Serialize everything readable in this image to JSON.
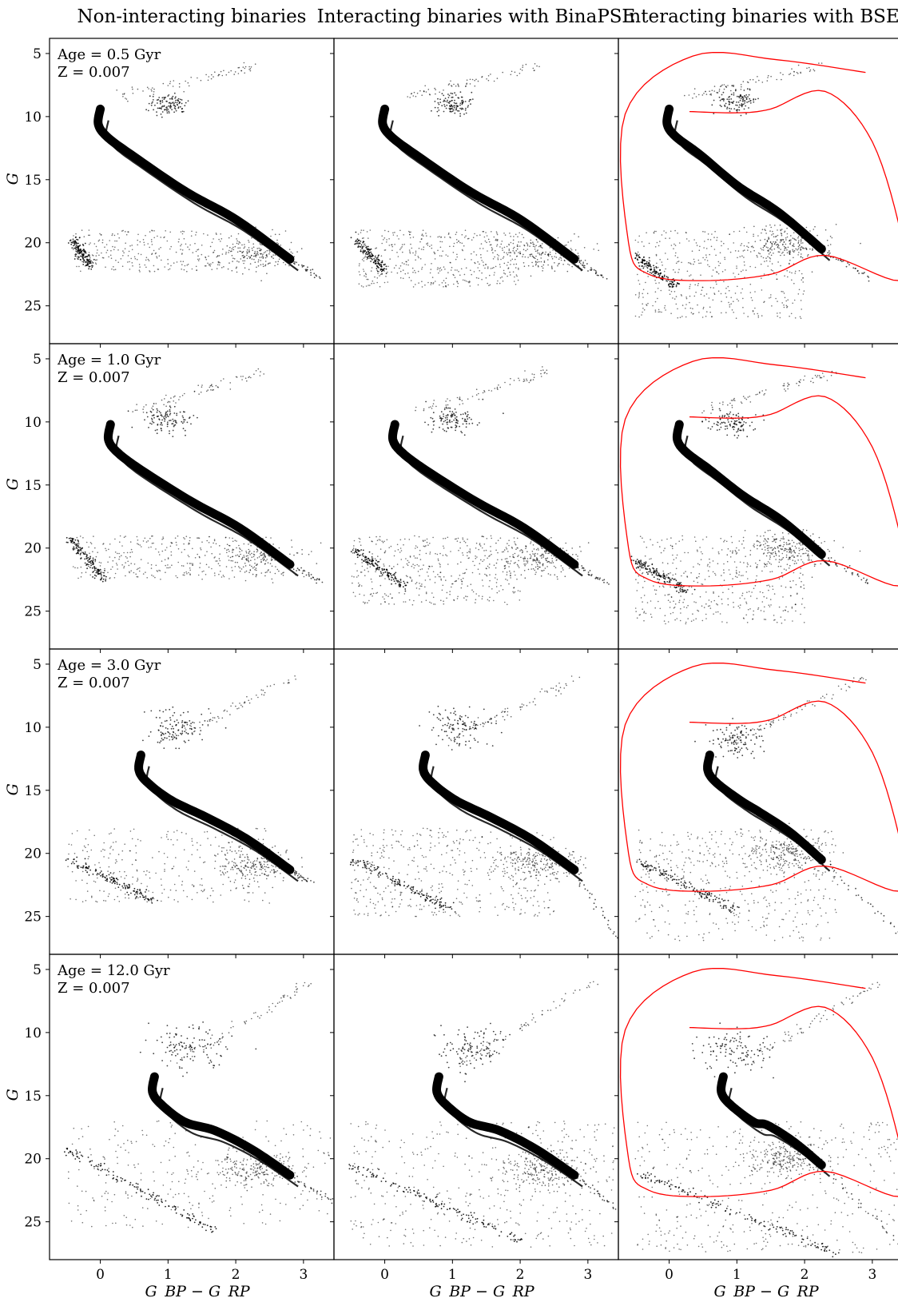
{
  "figure": {
    "type": "multi-panel color-magnitude diagram grid",
    "rows": 4,
    "cols": 3,
    "background": "#ffffff",
    "point_color": "#000000",
    "bse_track_color": "#ff0000"
  },
  "column_titles": [
    "Non-interacting binaries",
    "Interacting binaries with BinaPSE",
    "Interacting binaries with BSE"
  ],
  "row_labels": [
    {
      "age": "Age = 0.5 Gyr",
      "z": "Z = 0.007"
    },
    {
      "age": "Age = 1.0 Gyr",
      "z": "Z = 0.007"
    },
    {
      "age": "Age = 3.0 Gyr",
      "z": "Z = 0.007"
    },
    {
      "age": "Age = 12.0 Gyr",
      "z": "Z = 0.007"
    }
  ],
  "axes": {
    "xlabel": "G_BP − G_RP",
    "ylabel": "G",
    "xlim": [
      -0.75,
      3.45
    ],
    "ylim": [
      28,
      3.8
    ],
    "y_inverted": true,
    "xticks": [
      0,
      1,
      2,
      3
    ],
    "yticks": [
      5,
      10,
      15,
      20,
      25
    ],
    "grid": false
  },
  "chart_data": [
    {
      "type": "scatter",
      "age_gyr": 0.5,
      "column": "Non-interacting binaries",
      "ms": {
        "turnoff": [
          0.0,
          9.4
        ],
        "bottom": [
          2.8,
          21.3
        ],
        "width": 0.4
      },
      "ms_curve": [
        [
          0,
          9.4
        ],
        [
          -0.02,
          10.5
        ],
        [
          0.05,
          11.5
        ],
        [
          0.3,
          12.5
        ],
        [
          0.5,
          13.2
        ],
        [
          0.8,
          15
        ],
        [
          1.2,
          16.2
        ],
        [
          1.6,
          17.3
        ],
        [
          2.0,
          18.2
        ],
        [
          2.4,
          19.6
        ],
        [
          2.8,
          21.3
        ]
      ],
      "giants": {
        "center": [
          1.0,
          9.0
        ],
        "spread": [
          0.4,
          1.2
        ]
      },
      "faint_tail": [
        3.25,
        22.8
      ],
      "wd": [
        [
          -0.4,
          19.8
        ],
        [
          -0.15,
          21.8
        ]
      ],
      "scatter_cloud": {
        "x": [
          -0.4,
          1.8
        ],
        "y": [
          19.0,
          22.3
        ]
      },
      "bse_track": null
    },
    {
      "type": "scatter",
      "age_gyr": 0.5,
      "column": "Interacting binaries with BinaPSE",
      "ms": {
        "turnoff": [
          0.0,
          9.4
        ],
        "bottom": [
          2.8,
          21.3
        ],
        "width": 0.4
      },
      "giants": {
        "center": [
          1.0,
          9.0
        ],
        "spread": [
          0.4,
          1.2
        ]
      },
      "faint_tail": [
        3.25,
        22.8
      ],
      "wd": [
        [
          -0.4,
          19.8
        ],
        [
          0.0,
          22.3
        ]
      ],
      "scatter_cloud": {
        "x": [
          -0.4,
          2.0
        ],
        "y": [
          19.0,
          23.5
        ]
      },
      "bse_track": null
    },
    {
      "type": "scatter",
      "age_gyr": 0.5,
      "column": "Interacting binaries with BSE",
      "ms": {
        "turnoff": [
          0.0,
          9.4
        ],
        "bottom": [
          2.25,
          20.5
        ],
        "width": 0.4
      },
      "giants": {
        "center": [
          1.0,
          8.8
        ],
        "spread": [
          0.4,
          1.5
        ]
      },
      "faint_tail": [
        3.0,
        22.9
      ],
      "wd": [
        [
          -0.5,
          21.0
        ],
        [
          0.1,
          23.5
        ]
      ],
      "scatter_cloud": {
        "x": [
          -0.5,
          2.0
        ],
        "y": [
          19.0,
          26.0
        ]
      },
      "bse_track": [
        [
          2.9,
          6.5
        ],
        [
          1.6,
          5.5
        ],
        [
          0.35,
          5.2
        ],
        [
          -0.65,
          9.8
        ],
        [
          -0.6,
          20.0
        ],
        [
          -0.3,
          22.5
        ],
        [
          0.5,
          23.0
        ],
        [
          1.5,
          22.5
        ],
        [
          2.3,
          21.0
        ],
        [
          3.4,
          23.0
        ],
        [
          3.45,
          20.0
        ],
        [
          3.0,
          12.0
        ],
        [
          2.3,
          8.0
        ],
        [
          1.5,
          9.4
        ],
        [
          1.0,
          9.7
        ],
        [
          0.3,
          9.6
        ]
      ]
    },
    {
      "type": "scatter",
      "age_gyr": 1.0,
      "column": "Non-interacting binaries",
      "ms": {
        "turnoff": [
          0.15,
          10.2
        ],
        "bottom": [
          2.8,
          21.3
        ],
        "width": 0.4
      },
      "giants": {
        "center": [
          1.0,
          9.8
        ],
        "spread": [
          0.5,
          1.5
        ]
      },
      "faint_tail": [
        3.3,
        22.8
      ],
      "wd": [
        [
          -0.45,
          19.2
        ],
        [
          0.05,
          22.5
        ]
      ],
      "scatter_cloud": {
        "x": [
          -0.4,
          2.0
        ],
        "y": [
          19.0,
          22.5
        ]
      },
      "bse_track": null
    },
    {
      "type": "scatter",
      "age_gyr": 1.0,
      "column": "Interacting binaries with BinaPSE",
      "ms": {
        "turnoff": [
          0.15,
          10.2
        ],
        "bottom": [
          2.8,
          21.3
        ],
        "width": 0.4
      },
      "giants": {
        "center": [
          1.0,
          9.8
        ],
        "spread": [
          0.5,
          1.5
        ]
      },
      "faint_tail": [
        3.3,
        22.8
      ],
      "wd": [
        [
          -0.5,
          20.0
        ],
        [
          0.3,
          23.0
        ]
      ],
      "scatter_cloud": {
        "x": [
          -0.5,
          2.0
        ],
        "y": [
          19.0,
          24.5
        ]
      },
      "bse_track": null
    },
    {
      "type": "scatter",
      "age_gyr": 1.0,
      "column": "Interacting binaries with BSE",
      "ms": {
        "turnoff": [
          0.15,
          10.2
        ],
        "bottom": [
          2.25,
          20.5
        ],
        "width": 0.4
      },
      "giants": {
        "center": [
          0.9,
          10.0
        ],
        "spread": [
          0.5,
          1.5
        ]
      },
      "faint_tail": [
        3.0,
        22.9
      ],
      "wd": [
        [
          -0.5,
          21.0
        ],
        [
          0.3,
          23.5
        ]
      ],
      "scatter_cloud": {
        "x": [
          -0.5,
          2.0
        ],
        "y": [
          19.0,
          26.0
        ]
      },
      "bse_track": [
        [
          2.9,
          6.5
        ],
        [
          1.6,
          5.5
        ],
        [
          0.35,
          5.2
        ],
        [
          -0.65,
          9.8
        ],
        [
          -0.6,
          20.0
        ],
        [
          -0.3,
          22.5
        ],
        [
          0.5,
          23.0
        ],
        [
          1.5,
          22.5
        ],
        [
          2.3,
          21.0
        ],
        [
          3.4,
          23.0
        ],
        [
          3.45,
          20.0
        ],
        [
          3.0,
          12.0
        ],
        [
          2.3,
          8.0
        ],
        [
          1.5,
          9.4
        ],
        [
          1.0,
          9.7
        ],
        [
          0.3,
          9.6
        ]
      ]
    },
    {
      "type": "scatter",
      "age_gyr": 3.0,
      "column": "Non-interacting binaries",
      "ms": {
        "turnoff": [
          0.6,
          12.2
        ],
        "bottom": [
          2.8,
          21.3
        ],
        "width": 0.4
      },
      "giants": {
        "center": [
          1.1,
          10.0
        ],
        "spread": [
          0.6,
          2.0
        ]
      },
      "faint_tail": [
        3.1,
        22.3
      ],
      "wd": [
        [
          -0.45,
          20.5
        ],
        [
          0.8,
          23.8
        ]
      ],
      "scatter_cloud": {
        "x": [
          -0.5,
          2.5
        ],
        "y": [
          18.0,
          24.0
        ]
      },
      "bse_track": null
    },
    {
      "type": "scatter",
      "age_gyr": 3.0,
      "column": "Interacting binaries with BinaPSE",
      "ms": {
        "turnoff": [
          0.6,
          12.2
        ],
        "bottom": [
          2.8,
          21.3
        ],
        "width": 0.4
      },
      "giants": {
        "center": [
          1.1,
          10.0
        ],
        "spread": [
          0.6,
          2.0
        ]
      },
      "faint_tail": [
        3.45,
        27.0
      ],
      "wd": [
        [
          -0.45,
          20.5
        ],
        [
          1.0,
          24.5
        ]
      ],
      "scatter_cloud": {
        "x": [
          -0.5,
          2.5
        ],
        "y": [
          18.0,
          25.0
        ]
      },
      "bse_track": null
    },
    {
      "type": "scatter",
      "age_gyr": 3.0,
      "column": "Interacting binaries with BSE",
      "ms": {
        "turnoff": [
          0.6,
          12.2
        ],
        "bottom": [
          2.25,
          20.5
        ],
        "width": 0.4
      },
      "giants": {
        "center": [
          1.0,
          11.0
        ],
        "spread": [
          0.6,
          2.0
        ]
      },
      "faint_tail": [
        3.45,
        26.5
      ],
      "wd": [
        [
          -0.5,
          20.5
        ],
        [
          1.0,
          24.5
        ]
      ],
      "scatter_cloud": {
        "x": [
          -0.5,
          2.5
        ],
        "y": [
          18.0,
          27.0
        ]
      },
      "bse_track": [
        [
          2.9,
          6.5
        ],
        [
          1.6,
          5.5
        ],
        [
          0.35,
          5.2
        ],
        [
          -0.65,
          9.8
        ],
        [
          -0.6,
          20.0
        ],
        [
          -0.3,
          22.5
        ],
        [
          0.5,
          23.0
        ],
        [
          1.5,
          22.5
        ],
        [
          2.3,
          21.0
        ],
        [
          3.4,
          23.0
        ],
        [
          3.45,
          20.0
        ],
        [
          3.0,
          12.0
        ],
        [
          2.3,
          8.0
        ],
        [
          1.5,
          9.4
        ],
        [
          1.0,
          9.7
        ],
        [
          0.3,
          9.6
        ]
      ]
    },
    {
      "type": "scatter",
      "age_gyr": 12.0,
      "column": "Non-interacting binaries",
      "ms": {
        "turnoff": [
          0.8,
          13.5
        ],
        "bottom": [
          2.8,
          21.3
        ],
        "width": 0.4
      },
      "giants": {
        "center": [
          1.3,
          11.0
        ],
        "spread": [
          0.8,
          2.5
        ]
      },
      "faint_tail": [
        3.45,
        23.5
      ],
      "wd": [
        [
          -0.5,
          19.2
        ],
        [
          1.7,
          25.8
        ]
      ],
      "scatter_cloud": {
        "x": [
          -0.5,
          3.4
        ],
        "y": [
          17.0,
          25.5
        ]
      },
      "bse_track": null
    },
    {
      "type": "scatter",
      "age_gyr": 12.0,
      "column": "Interacting binaries with BinaPSE",
      "ms": {
        "turnoff": [
          0.8,
          13.5
        ],
        "bottom": [
          2.8,
          21.3
        ],
        "width": 0.4
      },
      "giants": {
        "center": [
          1.3,
          11.0
        ],
        "spread": [
          0.8,
          2.5
        ]
      },
      "faint_tail": [
        3.45,
        24.0
      ],
      "wd": [
        [
          -0.5,
          20.5
        ],
        [
          2.0,
          26.5
        ]
      ],
      "scatter_cloud": {
        "x": [
          -0.5,
          3.4
        ],
        "y": [
          17.0,
          27.0
        ]
      },
      "bse_track": null
    },
    {
      "type": "scatter",
      "age_gyr": 12.0,
      "column": "Interacting binaries with BSE",
      "ms": {
        "turnoff": [
          0.8,
          13.5
        ],
        "bottom": [
          2.25,
          20.5
        ],
        "width": 0.4
      },
      "giants": {
        "center": [
          1.0,
          11.5
        ],
        "spread": [
          0.8,
          2.5
        ]
      },
      "faint_tail": [
        3.45,
        27.0
      ],
      "wd": [
        [
          -0.5,
          21.0
        ],
        [
          2.5,
          27.5
        ]
      ],
      "scatter_cloud": {
        "x": [
          -0.5,
          3.4
        ],
        "y": [
          17.0,
          27.5
        ]
      },
      "bse_track": [
        [
          2.9,
          6.5
        ],
        [
          1.6,
          5.5
        ],
        [
          0.35,
          5.2
        ],
        [
          -0.65,
          9.8
        ],
        [
          -0.6,
          20.0
        ],
        [
          -0.3,
          22.5
        ],
        [
          0.5,
          23.0
        ],
        [
          1.5,
          22.5
        ],
        [
          2.3,
          21.0
        ],
        [
          3.4,
          23.0
        ],
        [
          3.45,
          20.0
        ],
        [
          3.0,
          12.0
        ],
        [
          2.3,
          8.0
        ],
        [
          1.5,
          9.4
        ],
        [
          1.0,
          9.7
        ],
        [
          0.3,
          9.6
        ]
      ]
    }
  ]
}
